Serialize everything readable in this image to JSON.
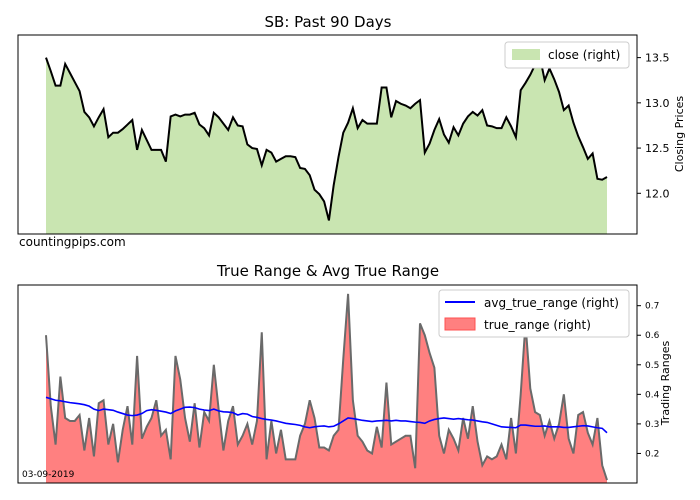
{
  "chart_data": [
    {
      "type": "area",
      "title": "SB: Past 90 Days",
      "ylabel": "Closing Prices",
      "ylabel_side": "right",
      "ylim": [
        11.55,
        13.75
      ],
      "yticks": [
        12.0,
        12.5,
        13.0,
        13.5
      ],
      "ytick_labels": [
        "12.0",
        "12.5",
        "13.0",
        "13.5"
      ],
      "grid": false,
      "legend_position": "top-right",
      "series": [
        {
          "name": "close (right)",
          "fill_color": "#c9e5b1",
          "line_color": "#000000",
          "values": [
            13.5,
            13.35,
            13.19,
            13.19,
            13.43,
            13.33,
            13.23,
            13.13,
            12.9,
            12.84,
            12.74,
            12.84,
            12.93,
            12.62,
            12.67,
            12.67,
            12.71,
            12.76,
            12.81,
            12.48,
            12.7,
            12.59,
            12.48,
            12.48,
            12.48,
            12.35,
            12.85,
            12.87,
            12.85,
            12.87,
            12.87,
            12.89,
            12.76,
            12.72,
            12.64,
            12.89,
            12.84,
            12.77,
            12.7,
            12.84,
            12.75,
            12.74,
            12.54,
            12.5,
            12.49,
            12.31,
            12.48,
            12.45,
            12.35,
            12.38,
            12.41,
            12.41,
            12.4,
            12.28,
            12.27,
            12.2,
            12.04,
            11.99,
            11.91,
            11.7,
            12.09,
            12.4,
            12.67,
            12.78,
            12.94,
            12.72,
            12.81,
            12.77,
            12.77,
            12.77,
            13.17,
            13.17,
            12.84,
            13.02,
            12.99,
            12.97,
            12.94,
            12.99,
            13.03,
            12.45,
            12.55,
            12.7,
            12.82,
            12.65,
            12.56,
            12.73,
            12.64,
            12.77,
            12.85,
            12.9,
            12.86,
            12.92,
            12.75,
            12.74,
            12.72,
            12.72,
            12.84,
            12.74,
            12.62,
            13.14,
            13.22,
            13.31,
            13.42,
            13.51,
            13.25,
            13.38,
            13.26,
            13.12,
            12.92,
            12.97,
            12.78,
            12.63,
            12.51,
            12.38,
            12.44,
            12.16,
            12.15,
            12.18
          ]
        }
      ],
      "annotation": "countingpips.com"
    },
    {
      "type": "area",
      "title": "True Range & Avg True Range",
      "ylabel": "Trading Ranges",
      "ylabel_side": "right",
      "ylim": [
        0.1,
        0.77
      ],
      "yticks": [
        0.2,
        0.3,
        0.4,
        0.5,
        0.6,
        0.7
      ],
      "ytick_labels": [
        "0.2",
        "0.3",
        "0.4",
        "0.5",
        "0.6",
        "0.7"
      ],
      "grid": false,
      "legend_position": "top-right",
      "series": [
        {
          "name": "avg_true_range (right)",
          "kind": "line",
          "color": "#0000ff",
          "values": [
            0.39,
            0.385,
            0.38,
            0.378,
            0.375,
            0.372,
            0.37,
            0.368,
            0.365,
            0.36,
            0.35,
            0.345,
            0.35,
            0.348,
            0.346,
            0.34,
            0.335,
            0.33,
            0.328,
            0.33,
            0.335,
            0.345,
            0.348,
            0.346,
            0.343,
            0.34,
            0.335,
            0.344,
            0.35,
            0.356,
            0.357,
            0.355,
            0.35,
            0.347,
            0.345,
            0.35,
            0.344,
            0.341,
            0.34,
            0.338,
            0.33,
            0.335,
            0.333,
            0.325,
            0.322,
            0.318,
            0.315,
            0.313,
            0.31,
            0.306,
            0.302,
            0.3,
            0.298,
            0.295,
            0.29,
            0.287,
            0.29,
            0.292,
            0.293,
            0.29,
            0.292,
            0.3,
            0.31,
            0.32,
            0.318,
            0.315,
            0.312,
            0.31,
            0.308,
            0.31,
            0.311,
            0.312,
            0.31,
            0.312,
            0.31,
            0.31,
            0.308,
            0.306,
            0.305,
            0.302,
            0.31,
            0.315,
            0.318,
            0.32,
            0.318,
            0.316,
            0.318,
            0.316,
            0.314,
            0.313,
            0.31,
            0.307,
            0.305,
            0.3,
            0.295,
            0.29,
            0.289,
            0.288,
            0.287,
            0.296,
            0.296,
            0.294,
            0.292,
            0.292,
            0.293,
            0.29,
            0.29,
            0.29,
            0.288,
            0.288,
            0.29,
            0.292,
            0.294,
            0.293,
            0.29,
            0.287,
            0.285,
            0.27
          ]
        },
        {
          "name": "true_range (right)",
          "kind": "area",
          "fill_color": "#ff8080",
          "line_color": "#6a6a6a",
          "values": [
            0.6,
            0.36,
            0.23,
            0.46,
            0.32,
            0.31,
            0.31,
            0.33,
            0.21,
            0.32,
            0.19,
            0.37,
            0.38,
            0.23,
            0.3,
            0.17,
            0.28,
            0.36,
            0.23,
            0.53,
            0.25,
            0.29,
            0.32,
            0.38,
            0.26,
            0.28,
            0.18,
            0.53,
            0.45,
            0.32,
            0.24,
            0.37,
            0.22,
            0.34,
            0.31,
            0.5,
            0.35,
            0.21,
            0.31,
            0.36,
            0.23,
            0.26,
            0.3,
            0.23,
            0.31,
            0.61,
            0.18,
            0.31,
            0.2,
            0.28,
            0.18,
            0.18,
            0.18,
            0.26,
            0.3,
            0.38,
            0.32,
            0.22,
            0.22,
            0.21,
            0.26,
            0.28,
            0.52,
            0.74,
            0.38,
            0.26,
            0.24,
            0.21,
            0.2,
            0.29,
            0.22,
            0.44,
            0.23,
            0.24,
            0.25,
            0.26,
            0.26,
            0.15,
            0.64,
            0.6,
            0.54,
            0.49,
            0.26,
            0.2,
            0.28,
            0.25,
            0.21,
            0.32,
            0.25,
            0.36,
            0.24,
            0.16,
            0.19,
            0.18,
            0.19,
            0.23,
            0.18,
            0.32,
            0.2,
            0.4,
            0.64,
            0.42,
            0.34,
            0.33,
            0.26,
            0.31,
            0.25,
            0.3,
            0.4,
            0.25,
            0.2,
            0.33,
            0.34,
            0.27,
            0.23,
            0.32,
            0.16,
            0.11
          ]
        }
      ],
      "annotation": "03-09-2019"
    }
  ]
}
